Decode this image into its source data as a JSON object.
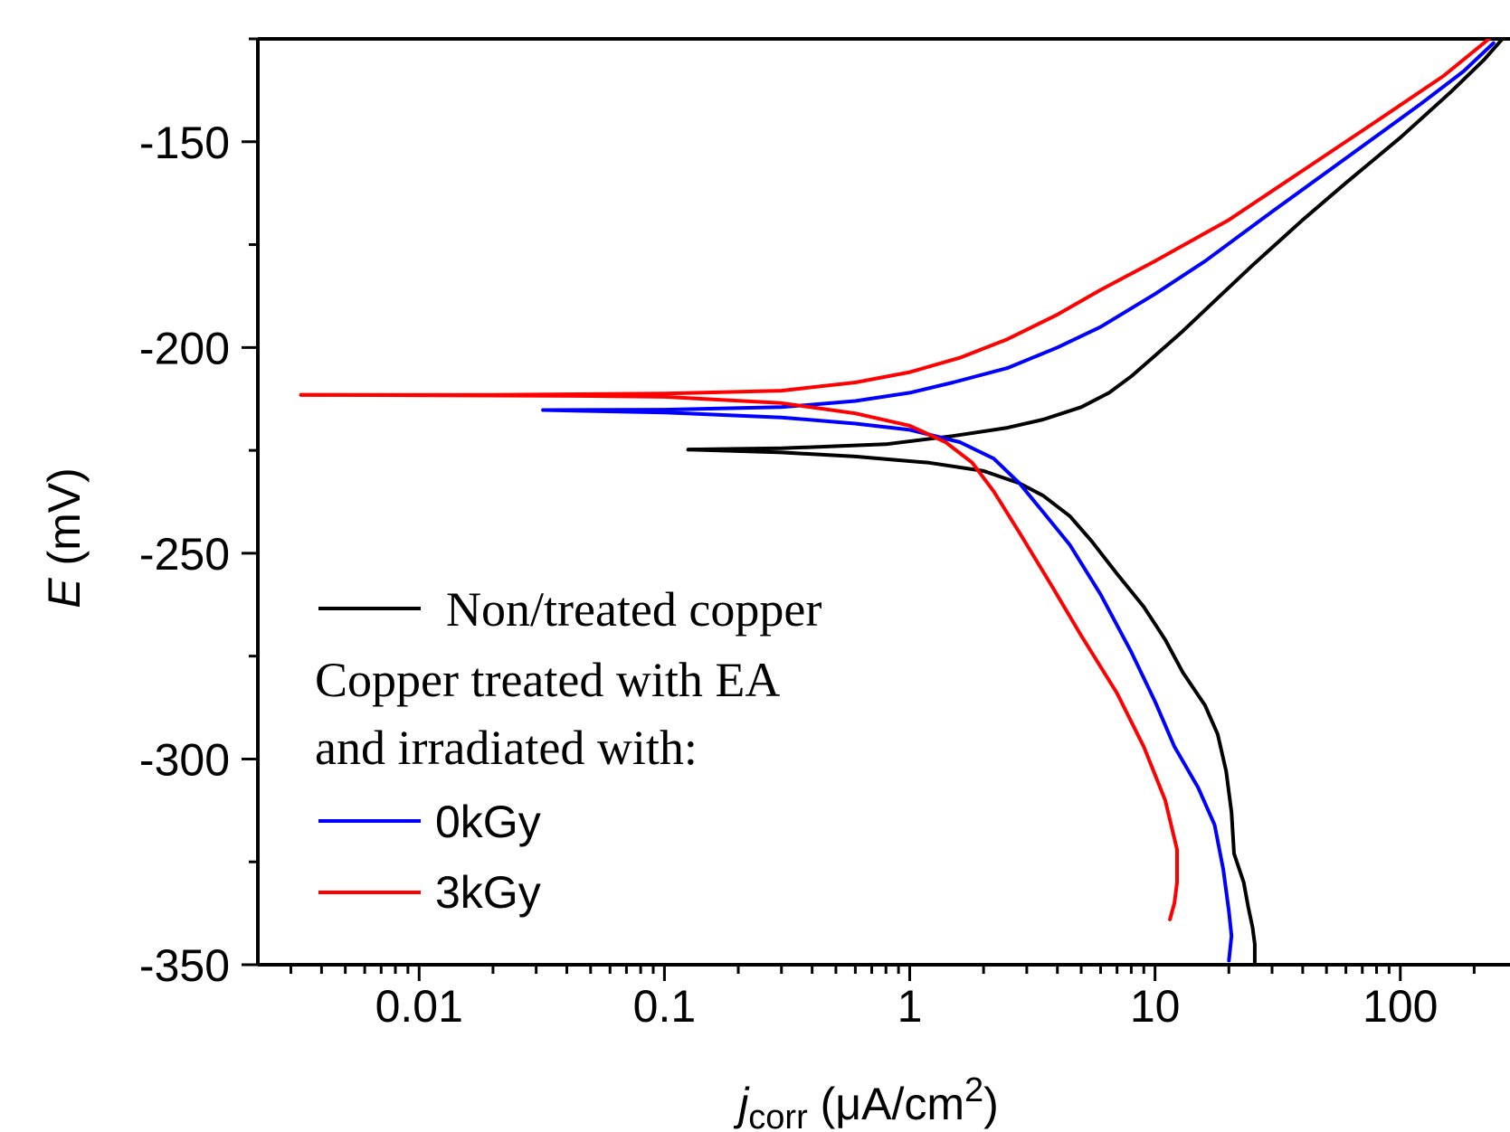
{
  "chart_data": {
    "type": "line",
    "title": "",
    "xlabel": {
      "main": "j",
      "sub": "corr",
      "unit": " (μA/cm",
      "sup": "2",
      "close": ")"
    },
    "ylabel": {
      "symbol": "E",
      "unit": " (mV)"
    },
    "x_scale": "log",
    "xlim": [
      0.0022,
      280
    ],
    "ylim": [
      -350,
      -125
    ],
    "x_ticks": [
      0.01,
      0.1,
      1,
      10,
      100
    ],
    "x_tick_labels": [
      "0.01",
      "0.1",
      "1",
      "10",
      "100"
    ],
    "y_ticks": [
      -150,
      -200,
      -250,
      -300,
      -350
    ],
    "y_tick_labels": [
      "-150",
      "-200",
      "-250",
      "-300",
      "-350"
    ],
    "grid": false,
    "legend": {
      "placement": "bottom-left",
      "header_lines": [
        "Copper treated with EA",
        "and irradiated with:"
      ]
    },
    "series": [
      {
        "name": "Non/treated copper",
        "color": "#000000",
        "anodic": [
          [
            0.125,
            -224.8
          ],
          [
            0.3,
            -224.5
          ],
          [
            0.8,
            -223.5
          ],
          [
            1.5,
            -221.5
          ],
          [
            2.5,
            -219.5
          ],
          [
            3.5,
            -217.5
          ],
          [
            5,
            -214.5
          ],
          [
            6.5,
            -211
          ],
          [
            8,
            -207
          ],
          [
            10,
            -202
          ],
          [
            13,
            -196
          ],
          [
            18,
            -188
          ],
          [
            25,
            -180
          ],
          [
            40,
            -169
          ],
          [
            60,
            -160
          ],
          [
            100,
            -149
          ],
          [
            160,
            -138
          ],
          [
            220,
            -130
          ],
          [
            270,
            -124
          ]
        ],
        "cathodic": [
          [
            0.125,
            -224.8
          ],
          [
            0.3,
            -225.5
          ],
          [
            0.6,
            -226.5
          ],
          [
            1.2,
            -228
          ],
          [
            2,
            -230
          ],
          [
            2.8,
            -233
          ],
          [
            3.5,
            -236
          ],
          [
            4.5,
            -241
          ],
          [
            5.5,
            -247
          ],
          [
            7,
            -255
          ],
          [
            9,
            -263
          ],
          [
            11,
            -271
          ],
          [
            13,
            -279
          ],
          [
            16,
            -287
          ],
          [
            18,
            -294
          ],
          [
            19.5,
            -303
          ],
          [
            20.5,
            -313
          ],
          [
            21,
            -323
          ],
          [
            23,
            -330
          ],
          [
            24,
            -336
          ],
          [
            25,
            -341
          ],
          [
            25.5,
            -345
          ],
          [
            25.5,
            -350
          ]
        ]
      },
      {
        "name": "0kGy",
        "color": "#0000ff",
        "anodic": [
          [
            0.032,
            -215.2
          ],
          [
            0.1,
            -215.1
          ],
          [
            0.3,
            -214.5
          ],
          [
            0.6,
            -213
          ],
          [
            1,
            -211
          ],
          [
            1.5,
            -208.5
          ],
          [
            2.5,
            -205
          ],
          [
            4,
            -200
          ],
          [
            6,
            -195
          ],
          [
            10,
            -187
          ],
          [
            16,
            -179
          ],
          [
            30,
            -167
          ],
          [
            60,
            -154
          ],
          [
            120,
            -141
          ],
          [
            180,
            -133
          ],
          [
            240,
            -126
          ]
        ],
        "cathodic": [
          [
            0.032,
            -215.2
          ],
          [
            0.1,
            -215.8
          ],
          [
            0.3,
            -217
          ],
          [
            0.6,
            -218.5
          ],
          [
            1,
            -220
          ],
          [
            1.6,
            -223
          ],
          [
            2.2,
            -227
          ],
          [
            2.8,
            -233
          ],
          [
            3.5,
            -240
          ],
          [
            4.5,
            -248
          ],
          [
            6,
            -260
          ],
          [
            8,
            -274
          ],
          [
            10,
            -286
          ],
          [
            12,
            -297
          ],
          [
            15,
            -307
          ],
          [
            17.5,
            -316
          ],
          [
            19,
            -327
          ],
          [
            20,
            -337
          ],
          [
            20.5,
            -343
          ],
          [
            20,
            -349
          ]
        ]
      },
      {
        "name": "3kGy",
        "color": "#ff0000",
        "anodic": [
          [
            0.0033,
            -211.5
          ],
          [
            0.02,
            -211.5
          ],
          [
            0.1,
            -211.2
          ],
          [
            0.3,
            -210.5
          ],
          [
            0.6,
            -208.5
          ],
          [
            1,
            -206
          ],
          [
            1.6,
            -202.5
          ],
          [
            2.5,
            -198
          ],
          [
            4,
            -192
          ],
          [
            6,
            -186
          ],
          [
            10,
            -179
          ],
          [
            20,
            -169
          ],
          [
            40,
            -157
          ],
          [
            80,
            -145
          ],
          [
            150,
            -134
          ],
          [
            230,
            -125
          ]
        ],
        "cathodic": [
          [
            0.0033,
            -211.5
          ],
          [
            0.05,
            -211.8
          ],
          [
            0.1,
            -212
          ],
          [
            0.3,
            -213.5
          ],
          [
            0.6,
            -216
          ],
          [
            1,
            -219
          ],
          [
            1.4,
            -223
          ],
          [
            1.8,
            -228
          ],
          [
            2.2,
            -235
          ],
          [
            2.8,
            -245
          ],
          [
            3.8,
            -258
          ],
          [
            5,
            -270
          ],
          [
            7,
            -284
          ],
          [
            9,
            -297
          ],
          [
            11,
            -310
          ],
          [
            12.3,
            -322
          ],
          [
            12.3,
            -330
          ],
          [
            12,
            -335
          ],
          [
            11.5,
            -339
          ]
        ]
      }
    ]
  }
}
